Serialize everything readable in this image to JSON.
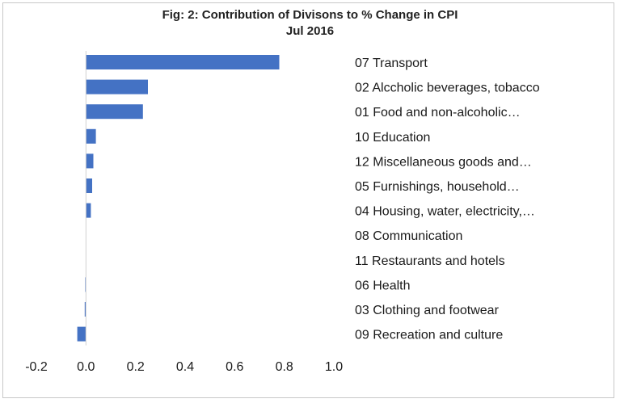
{
  "chart_data": {
    "type": "bar",
    "orientation": "horizontal",
    "title": "Fig: 2: Contribution of Divisons to % Change in CPI",
    "subtitle": "Jul 2016",
    "xlabel": "",
    "ylabel": "",
    "xlim": [
      -0.2,
      1.0
    ],
    "xticks": [
      "-0.2",
      "0.0",
      "0.2",
      "0.4",
      "0.6",
      "0.8",
      "1.0"
    ],
    "tick_values": [
      -0.2,
      0.0,
      0.2,
      0.4,
      0.6,
      0.8,
      1.0
    ],
    "grid": false,
    "legend": "none",
    "bar_color": "#4472c4",
    "categories": [
      "07 Transport",
      "02 Alccholic beverages, tobacco",
      "01 Food and non-alcoholic…",
      "10 Education",
      "12 Miscellaneous goods and…",
      "05 Furnishings, household…",
      "04 Housing, water, electricity,…",
      "08 Communication",
      "11 Restaurants and hotels",
      "06 Health",
      "03 Clothing and footwear",
      "09 Recreation and culture"
    ],
    "values": [
      0.78,
      0.25,
      0.23,
      0.04,
      0.03,
      0.025,
      0.02,
      0.0,
      0.0,
      -0.003,
      -0.005,
      -0.035
    ]
  }
}
